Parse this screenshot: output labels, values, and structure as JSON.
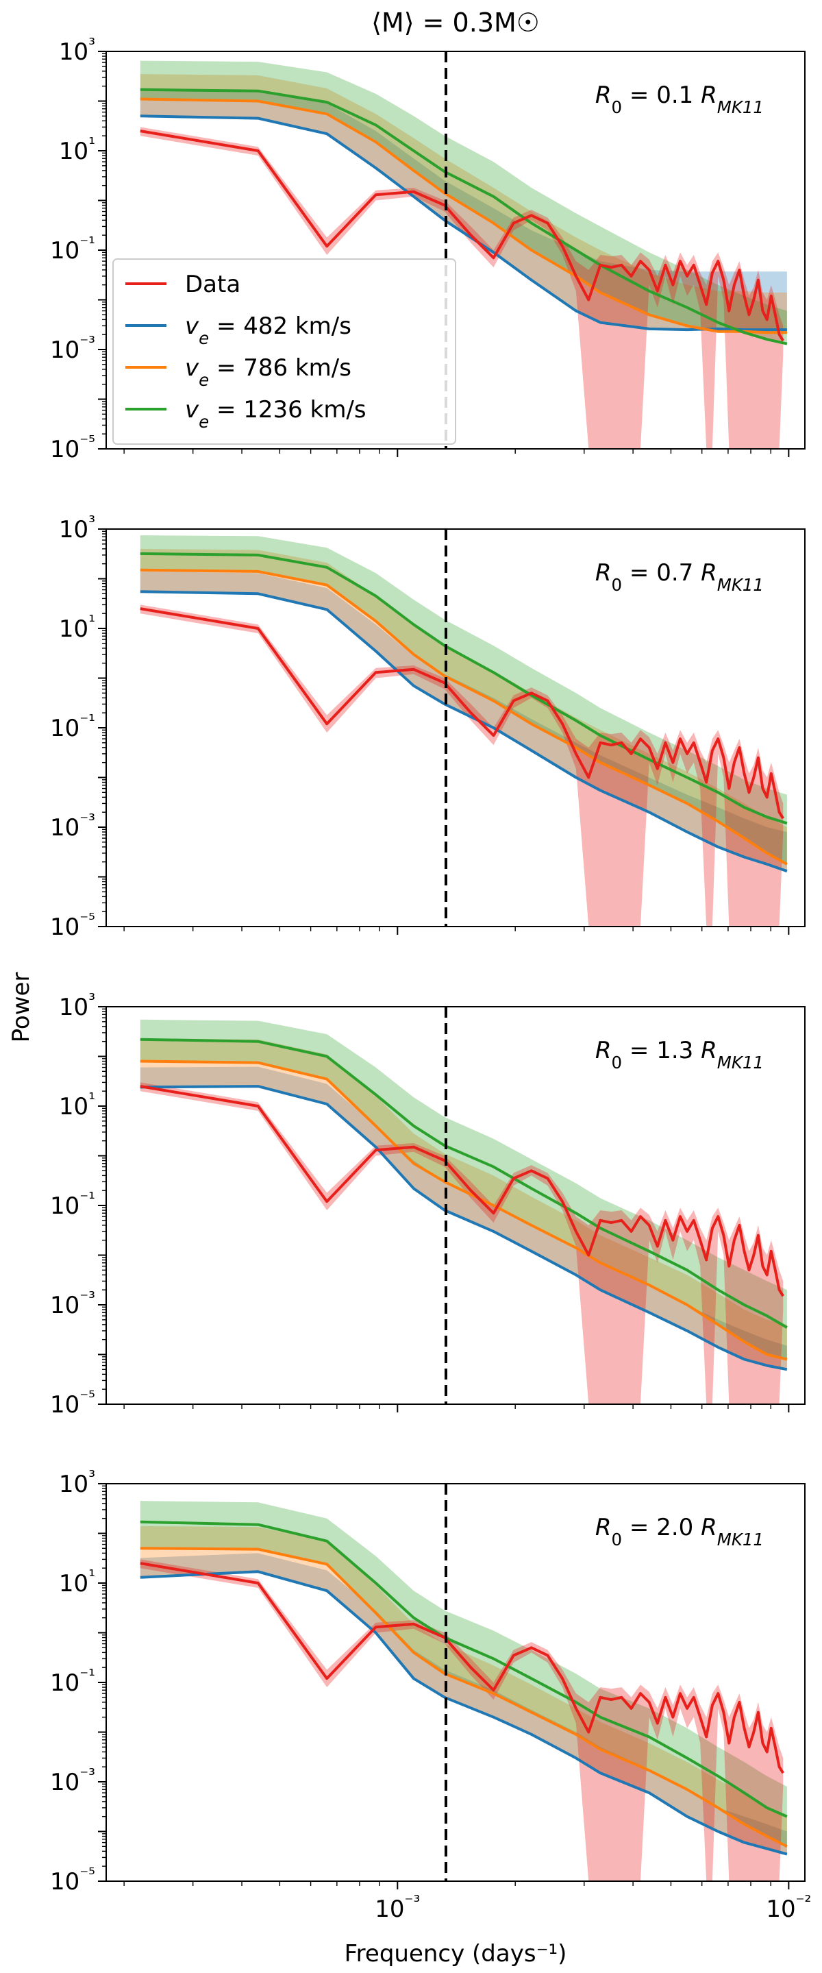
{
  "figure": {
    "title": "⟨M⟩ = 0.3M☉",
    "xlabel": "Frequency (days⁻¹)",
    "ylabel": "Power"
  },
  "chart_data": {
    "type": "line",
    "x_scale": "log",
    "y_scale": "log",
    "xlim": [
      0.00018,
      0.011
    ],
    "ylim": [
      1e-05,
      1000
    ],
    "x_ticks": [
      {
        "value": 0.001,
        "label": "10⁻³"
      },
      {
        "value": 0.01,
        "label": "10⁻²"
      }
    ],
    "y_ticks": [
      {
        "value": 1000,
        "label": "10³"
      },
      {
        "value": 10,
        "label": "10¹"
      },
      {
        "value": 0.1,
        "label": "10⁻¹"
      },
      {
        "value": 0.001,
        "label": "10⁻³"
      },
      {
        "value": 1e-05,
        "label": "10⁻⁵"
      }
    ],
    "vline_x": 0.00133,
    "colors": {
      "data": "#e8201b",
      "v482": "#1f77b4",
      "v786": "#ff7f0e",
      "v1236": "#2ca02c"
    },
    "legend": {
      "location": "lower-left, first panel",
      "entries": [
        {
          "label": "Data",
          "color": "#e8201b"
        },
        {
          "label": "v_e = 482 km/s",
          "color": "#1f77b4"
        },
        {
          "label": "v_e = 786 km/s",
          "color": "#ff7f0e"
        },
        {
          "label": "v_e = 1236 km/s",
          "color": "#2ca02c"
        }
      ]
    },
    "data_series": {
      "name": "Data",
      "x": [
        0.00022,
        0.00044,
        0.00066,
        0.00088,
        0.0011,
        0.00132,
        0.00154,
        0.00176,
        0.00198,
        0.0022,
        0.00242,
        0.00264,
        0.00286,
        0.00308,
        0.0033,
        0.00352,
        0.00374,
        0.00396,
        0.00418,
        0.0044,
        0.00462,
        0.00484,
        0.00506,
        0.00528,
        0.0055,
        0.00572,
        0.00594,
        0.00616,
        0.00638,
        0.0066,
        0.00682,
        0.00704,
        0.00726,
        0.00748,
        0.0077,
        0.00792,
        0.00814,
        0.00836,
        0.00858,
        0.0088,
        0.00902,
        0.00924,
        0.00946,
        0.00968
      ],
      "y": [
        25,
        10,
        0.12,
        1.3,
        1.5,
        0.8,
        0.2,
        0.07,
        0.35,
        0.5,
        0.35,
        0.12,
        0.03,
        0.01,
        0.05,
        0.045,
        0.05,
        0.03,
        0.06,
        0.04,
        0.015,
        0.05,
        0.02,
        0.06,
        0.03,
        0.05,
        0.02,
        0.008,
        0.035,
        0.06,
        0.025,
        0.006,
        0.02,
        0.04,
        0.012,
        0.005,
        0.01,
        0.025,
        0.006,
        0.004,
        0.012,
        0.005,
        0.002,
        0.0015
      ],
      "band_lower": [
        20,
        8,
        0.08,
        1.0,
        1.2,
        0.6,
        0.14,
        0.045,
        0.25,
        0.4,
        0.25,
        0.08,
        0.015,
        1e-05,
        1e-05,
        1e-05,
        1e-05,
        1e-05,
        1e-05,
        0.02,
        0.007,
        0.03,
        0.008,
        0.03,
        0.012,
        0.02,
        0.006,
        1e-05,
        1e-05,
        0.03,
        0.01,
        1e-05,
        1e-05,
        1e-05,
        1e-05,
        1e-05,
        1e-05,
        1e-05,
        1e-05,
        1e-05,
        1e-05,
        1e-05,
        1e-05,
        0.0008
      ],
      "band_upper": [
        30,
        12,
        0.18,
        1.6,
        1.8,
        1.0,
        0.3,
        0.1,
        0.45,
        0.65,
        0.45,
        0.18,
        0.06,
        0.04,
        0.08,
        0.075,
        0.08,
        0.05,
        0.09,
        0.065,
        0.03,
        0.08,
        0.035,
        0.09,
        0.05,
        0.08,
        0.035,
        0.02,
        0.06,
        0.09,
        0.045,
        0.02,
        0.035,
        0.06,
        0.025,
        0.012,
        0.018,
        0.04,
        0.014,
        0.01,
        0.02,
        0.01,
        0.005,
        0.003
      ]
    },
    "model_x": [
      0.00022,
      0.00044,
      0.00066,
      0.00088,
      0.0011,
      0.00132,
      0.00176,
      0.0022,
      0.00286,
      0.0033,
      0.0044,
      0.0055,
      0.0066,
      0.0077,
      0.0088,
      0.0099
    ],
    "panels": [
      {
        "annotation": "R₀ = 0.1 R_MK11",
        "show_legend": true,
        "series": [
          {
            "name": "v_e = 482 km/s",
            "y": [
              50,
              45,
              22,
              4.5,
              1.2,
              0.4,
              0.09,
              0.025,
              0.006,
              0.0035,
              0.0026,
              0.0025,
              0.0026,
              0.0025,
              0.0025,
              0.0025
            ],
            "band_upper": [
              180,
              170,
              90,
              25,
              7,
              2.5,
              0.7,
              0.25,
              0.1,
              0.06,
              0.04,
              0.037,
              0.037,
              0.037,
              0.037,
              0.037
            ]
          },
          {
            "name": "v_e = 786 km/s",
            "y": [
              110,
              100,
              55,
              15,
              4,
              1.4,
              0.35,
              0.1,
              0.03,
              0.014,
              0.005,
              0.003,
              0.0023,
              0.0023,
              0.0022,
              0.0022
            ],
            "band_upper": [
              350,
              330,
              180,
              55,
              18,
              7,
              1.8,
              0.6,
              0.18,
              0.1,
              0.035,
              0.02,
              0.015,
              0.015,
              0.014,
              0.014
            ]
          },
          {
            "name": "v_e = 1236 km/s",
            "y": [
              170,
              160,
              95,
              33,
              10,
              3.8,
              1.2,
              0.35,
              0.1,
              0.05,
              0.015,
              0.007,
              0.0035,
              0.0022,
              0.0016,
              0.0013
            ],
            "band_upper": [
              650,
              620,
              380,
              140,
              50,
              20,
              6,
              1.8,
              0.55,
              0.3,
              0.09,
              0.04,
              0.02,
              0.012,
              0.008,
              0.006
            ]
          }
        ]
      },
      {
        "annotation": "R₀ = 0.7 R_MK11",
        "show_legend": false,
        "series": [
          {
            "name": "v_e = 482 km/s",
            "y": [
              55,
              50,
              24,
              3.5,
              0.7,
              0.3,
              0.1,
              0.035,
              0.01,
              0.0055,
              0.002,
              0.0008,
              0.0004,
              0.00025,
              0.00018,
              0.00013
            ],
            "band_upper": [
              140,
              130,
              65,
              12,
              2.8,
              1.2,
              0.4,
              0.15,
              0.05,
              0.028,
              0.01,
              0.0045,
              0.0025,
              0.0015,
              0.001,
              0.0008
            ]
          },
          {
            "name": "v_e = 786 km/s",
            "y": [
              150,
              140,
              75,
              14,
              3,
              1.1,
              0.35,
              0.12,
              0.04,
              0.02,
              0.007,
              0.003,
              0.0013,
              0.0006,
              0.0003,
              0.00018
            ],
            "band_upper": [
              400,
              380,
              210,
              45,
              12,
              4.5,
              1.4,
              0.5,
              0.16,
              0.09,
              0.03,
              0.013,
              0.006,
              0.003,
              0.0016,
              0.001
            ]
          },
          {
            "name": "v_e = 1236 km/s",
            "y": [
              320,
              300,
              170,
              45,
              12,
              4.5,
              1.3,
              0.45,
              0.14,
              0.07,
              0.023,
              0.01,
              0.005,
              0.0025,
              0.0016,
              0.0012
            ],
            "band_upper": [
              750,
              720,
              420,
              130,
              38,
              15,
              4.5,
              1.6,
              0.5,
              0.25,
              0.08,
              0.035,
              0.017,
              0.009,
              0.006,
              0.0045
            ]
          }
        ]
      },
      {
        "annotation": "R₀ = 1.3 R_MK11",
        "show_legend": false,
        "series": [
          {
            "name": "v_e = 482 km/s",
            "y": [
              24,
              25,
              11,
              1.5,
              0.22,
              0.08,
              0.03,
              0.012,
              0.004,
              0.002,
              0.0007,
              0.0003,
              0.00014,
              8e-05,
              6e-05,
              5e-05
            ],
            "band_upper": [
              60,
              62,
              28,
              4,
              0.8,
              0.3,
              0.1,
              0.04,
              0.013,
              0.007,
              0.0025,
              0.001,
              0.0005,
              0.0003,
              0.0002,
              0.00015
            ]
          },
          {
            "name": "v_e = 786 km/s",
            "y": [
              80,
              75,
              35,
              4,
              0.7,
              0.3,
              0.1,
              0.04,
              0.014,
              0.007,
              0.0025,
              0.001,
              0.0004,
              0.00018,
              0.0001,
              8e-05
            ],
            "band_upper": [
              230,
              220,
              110,
              16,
              2.8,
              1.1,
              0.4,
              0.15,
              0.05,
              0.025,
              0.009,
              0.004,
              0.0017,
              0.0008,
              0.0005,
              0.0004
            ]
          },
          {
            "name": "v_e = 1236 km/s",
            "y": [
              220,
              200,
              100,
              17,
              4,
              1.6,
              0.6,
              0.22,
              0.07,
              0.035,
              0.012,
              0.005,
              0.002,
              0.001,
              0.0006,
              0.00035
            ],
            "band_upper": [
              550,
              520,
              280,
              60,
              15,
              6,
              2.2,
              0.85,
              0.28,
              0.14,
              0.05,
              0.02,
              0.009,
              0.005,
              0.003,
              0.002
            ]
          }
        ]
      },
      {
        "annotation": "R₀ = 2.0 R_MK11",
        "show_legend": false,
        "series": [
          {
            "name": "v_e = 482 km/s",
            "y": [
              13,
              17,
              7,
              1.0,
              0.12,
              0.05,
              0.02,
              0.009,
              0.003,
              0.0015,
              0.0006,
              0.0002,
              0.0001,
              6e-05,
              4.5e-05,
              3.5e-05
            ],
            "band_upper": [
              32,
              40,
              18,
              2.8,
              0.45,
              0.18,
              0.07,
              0.028,
              0.01,
              0.005,
              0.0018,
              0.0007,
              0.0003,
              0.0002,
              0.00014,
              0.0001
            ]
          },
          {
            "name": "v_e = 786 km/s",
            "y": [
              50,
              48,
              24,
              2.5,
              0.4,
              0.15,
              0.06,
              0.025,
              0.009,
              0.0045,
              0.0017,
              0.0007,
              0.0003,
              0.00014,
              8e-05,
              5e-05
            ],
            "band_upper": [
              140,
              135,
              70,
              9,
              1.5,
              0.6,
              0.22,
              0.09,
              0.03,
              0.016,
              0.006,
              0.0025,
              0.0011,
              0.0006,
              0.0003,
              0.0002
            ]
          },
          {
            "name": "v_e = 1236 km/s",
            "y": [
              170,
              150,
              70,
              10,
              2,
              0.8,
              0.3,
              0.12,
              0.04,
              0.02,
              0.008,
              0.003,
              0.0013,
              0.0006,
              0.0003,
              0.0002
            ],
            "band_upper": [
              450,
              420,
              200,
              35,
              7,
              2.8,
              1.1,
              0.45,
              0.15,
              0.075,
              0.03,
              0.012,
              0.005,
              0.0025,
              0.0013,
              0.0008
            ]
          }
        ]
      }
    ]
  }
}
